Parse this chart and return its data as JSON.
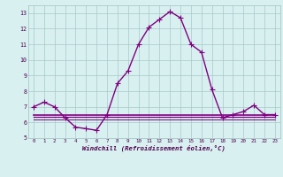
{
  "hours": [
    0,
    1,
    2,
    3,
    4,
    5,
    6,
    7,
    8,
    9,
    10,
    11,
    12,
    13,
    14,
    15,
    16,
    17,
    18,
    19,
    20,
    21,
    22,
    23
  ],
  "temp": [
    7.0,
    7.3,
    7.0,
    6.3,
    5.7,
    5.6,
    5.5,
    6.5,
    8.5,
    9.3,
    11.0,
    12.1,
    12.6,
    13.1,
    12.7,
    11.0,
    10.5,
    8.1,
    6.3,
    6.5,
    6.7,
    7.1,
    6.5,
    6.5
  ],
  "wc1": [
    6.5,
    6.5,
    6.5,
    6.5,
    6.5,
    6.5,
    6.5,
    6.5,
    6.5,
    6.5,
    6.5,
    6.5,
    6.5,
    6.5,
    6.5,
    6.5,
    6.5,
    6.5,
    6.5,
    6.5,
    6.5,
    6.5,
    6.5,
    6.5
  ],
  "wc2": [
    6.35,
    6.35,
    6.35,
    6.35,
    6.35,
    6.35,
    6.35,
    6.35,
    6.35,
    6.35,
    6.35,
    6.35,
    6.35,
    6.35,
    6.35,
    6.35,
    6.35,
    6.35,
    6.35,
    6.35,
    6.35,
    6.35,
    6.35,
    6.35
  ],
  "wc3": [
    6.2,
    6.2,
    6.2,
    6.2,
    6.2,
    6.2,
    6.2,
    6.2,
    6.2,
    6.2,
    6.2,
    6.2,
    6.2,
    6.2,
    6.2,
    6.2,
    6.2,
    6.2,
    6.2,
    6.2,
    6.2,
    6.2,
    6.2,
    6.2
  ],
  "line_color": "#800080",
  "bg_color": "#d8f0f0",
  "grid_color": "#a8c8c8",
  "xlabel": "Windchill (Refroidissement éolien,°C)",
  "ylim": [
    5,
    13.5
  ],
  "xlim": [
    -0.5,
    23.5
  ],
  "yticks": [
    5,
    6,
    7,
    8,
    9,
    10,
    11,
    12,
    13
  ],
  "xticks": [
    0,
    1,
    2,
    3,
    4,
    5,
    6,
    7,
    8,
    9,
    10,
    11,
    12,
    13,
    14,
    15,
    16,
    17,
    18,
    19,
    20,
    21,
    22,
    23
  ],
  "marker": "+",
  "markersize": 4,
  "linewidth": 1.0,
  "wc_lw1": 1.2,
  "wc_lw2": 0.9,
  "wc_lw3": 0.7
}
